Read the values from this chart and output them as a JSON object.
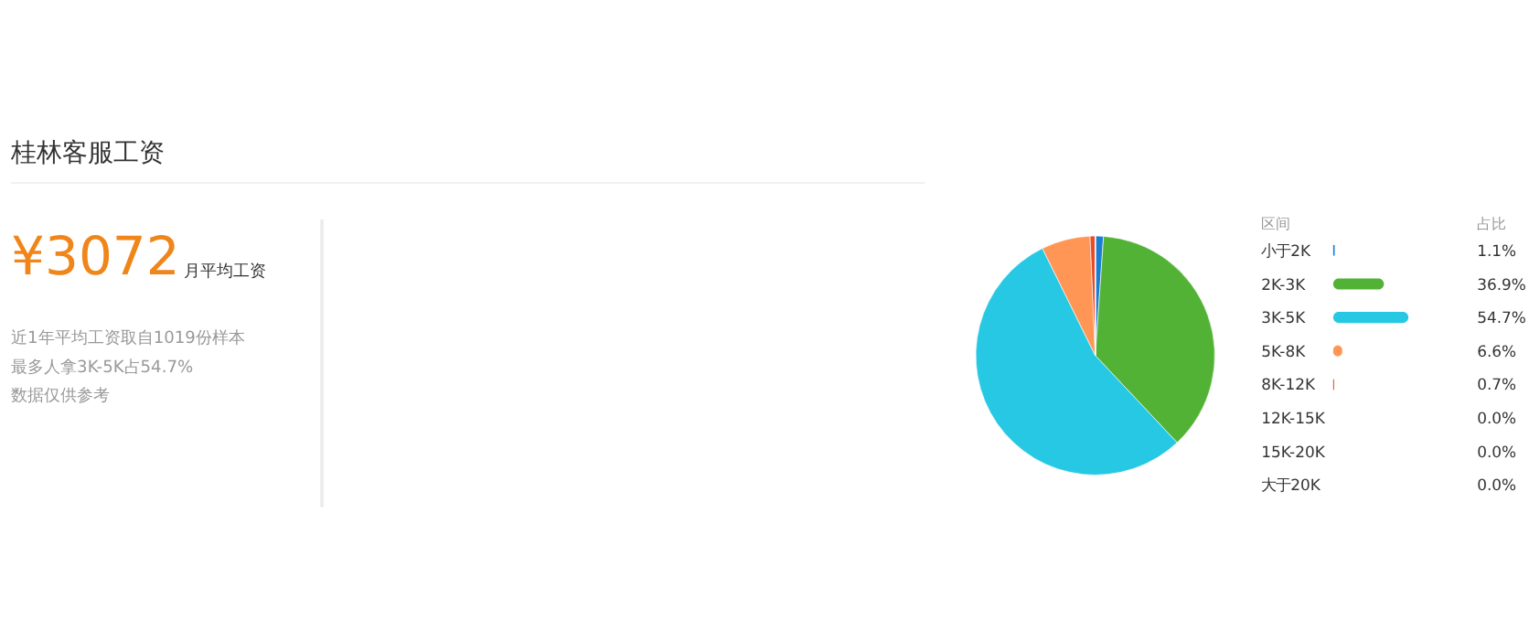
{
  "chart_data": [
    {
      "type": "other",
      "title": "桂林客服工资",
      "annotations": [
        "¥3072",
        "月平均工资",
        "近1年平均工资取自1019份样本",
        "最多人拿3K-5K占54.7%",
        "数据仅供参考"
      ]
    },
    {
      "type": "pie",
      "legend_title": "区间",
      "annotations": [
        "占比"
      ],
      "legend": "right",
      "categories": [
        "小于2K",
        "2K-3K",
        "3K-5K",
        "5K-8K",
        "8K-12K",
        "12K-15K",
        "15K-20K",
        "大于20K"
      ],
      "values": [
        1.1,
        36.9,
        54.7,
        6.6,
        0.7,
        0.0,
        0.0,
        0.0
      ],
      "value_labels": [
        "1.1%",
        "36.9%",
        "54.7%",
        "6.6%",
        "0.7%",
        "0.0%",
        "0.0%",
        "0.0%"
      ],
      "colors": [
        "#1a7fd4",
        "#52b236",
        "#27c8e3",
        "#ff9656",
        "#e84d2a",
        "#9b59b6",
        "#f4c430",
        "#888888"
      ]
    }
  ]
}
